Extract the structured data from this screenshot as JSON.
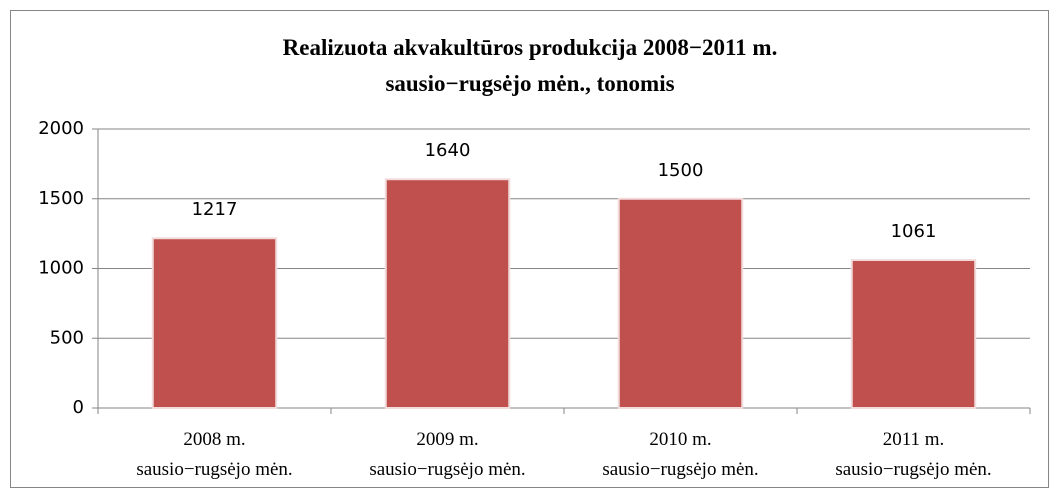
{
  "chart_data": {
    "type": "bar",
    "title": "Realizuota akvakultūros produkcija 2008−2011 m.\nsausio−rugsėjo mėn., tonomis",
    "categories": [
      "2008 m.\nsausio−rugsėjo mėn.",
      "2009 m.\nsausio−rugsėjo mėn.",
      "2010 m.\nsausio−rugsėjo mėn.",
      "2011 m.\nsausio−rugsėjo mėn."
    ],
    "values": [
      1217,
      1640,
      1500,
      1061
    ],
    "color": "#c0504d",
    "ylim": [
      0,
      2000
    ],
    "yticks": [
      0,
      500,
      1000,
      1500,
      2000
    ],
    "grid": true
  }
}
